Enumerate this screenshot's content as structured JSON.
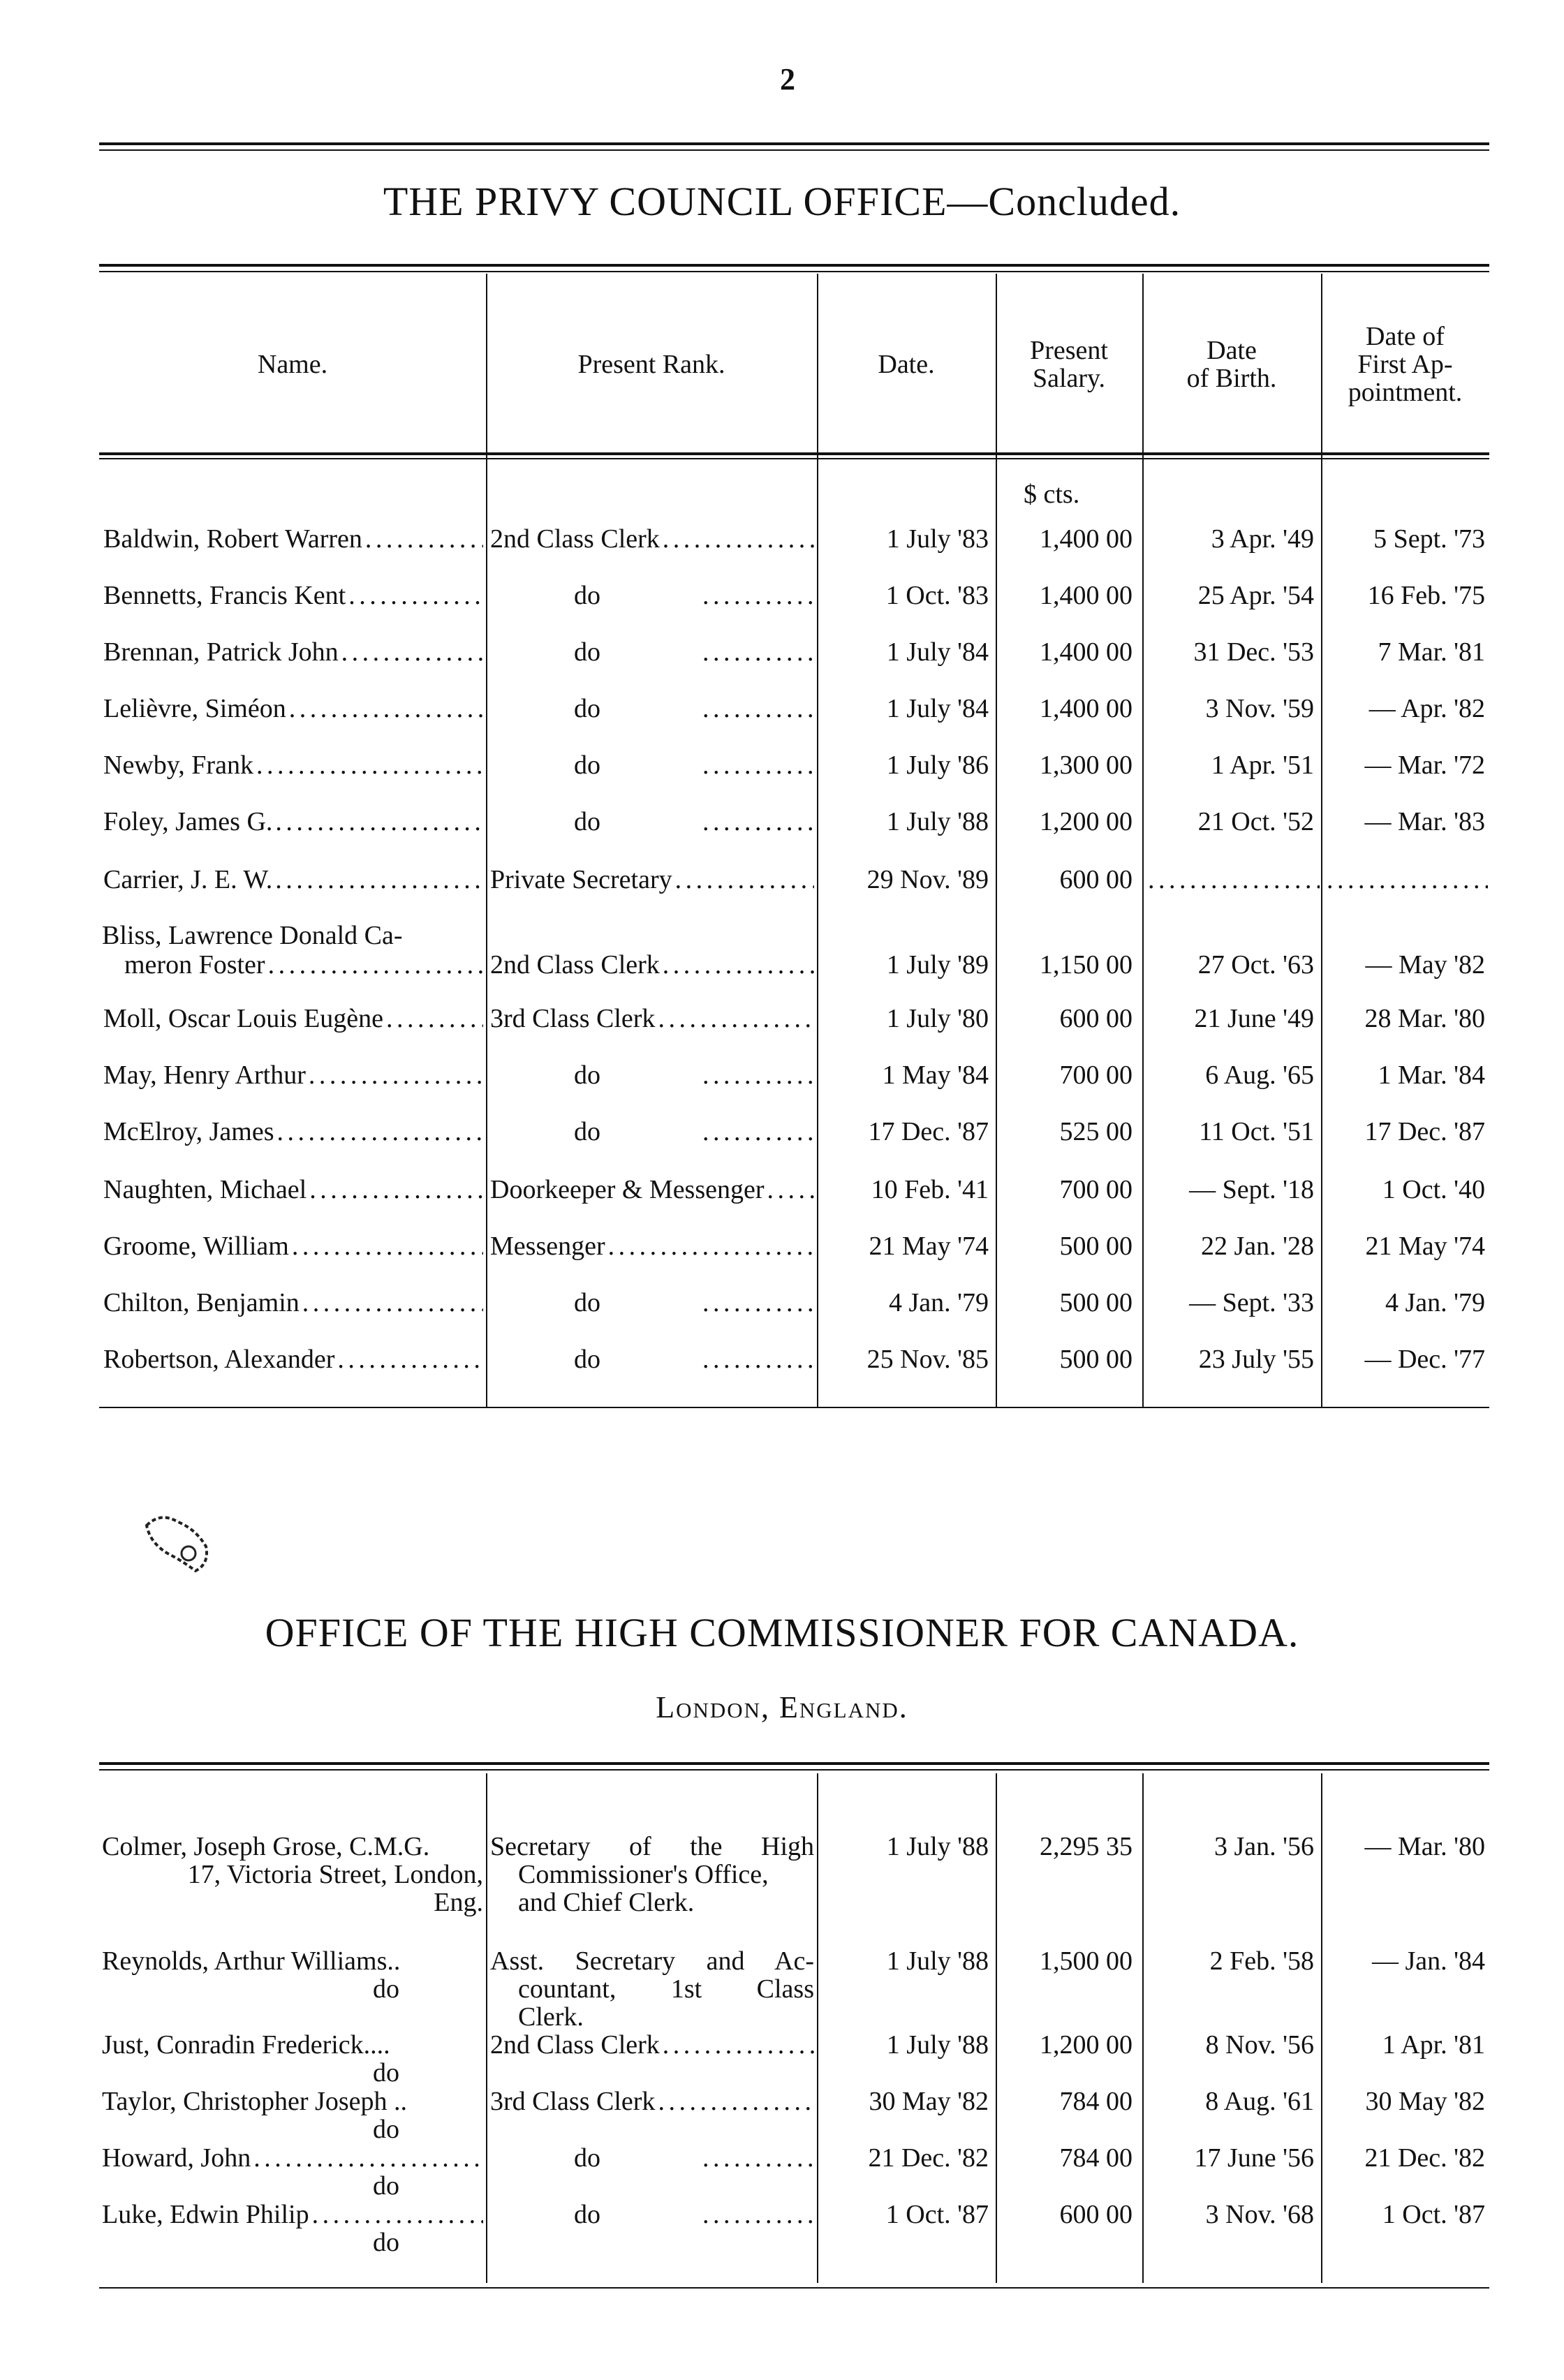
{
  "page_number": "2",
  "section1": {
    "title": "THE PRIVY COUNCIL OFFICE—Concluded.",
    "headers": [
      "Name.",
      "Present Rank.",
      "Date.",
      "Present Salary.",
      "Date of Birth.",
      "Date of First Ap- pointment."
    ],
    "currency_label": "$ cts.",
    "rows": [
      {
        "name": [
          "Baldwin, Robert Warren"
        ],
        "rank": "2nd Class Clerk",
        "date": "1 July '83",
        "salary": "1,400 00",
        "birth": "3 Apr. '49",
        "first": "5 Sept. '73"
      },
      {
        "name": [
          "Bennetts, Francis Kent"
        ],
        "rank": "do",
        "date": "1 Oct. '83",
        "salary": "1,400 00",
        "birth": "25 Apr. '54",
        "first": "16 Feb. '75"
      },
      {
        "name": [
          "Brennan, Patrick John"
        ],
        "rank": "do",
        "date": "1 July '84",
        "salary": "1,400 00",
        "birth": "31 Dec. '53",
        "first": "7 Mar. '81"
      },
      {
        "name": [
          "Lelièvre, Siméon"
        ],
        "rank": "do",
        "date": "1 July '84",
        "salary": "1,400 00",
        "birth": "3 Nov. '59",
        "first": "— Apr. '82"
      },
      {
        "name": [
          "Newby, Frank"
        ],
        "rank": "do",
        "date": "1 July '86",
        "salary": "1,300 00",
        "birth": "1 Apr. '51",
        "first": "— Mar. '72"
      },
      {
        "name": [
          "Foley, James G."
        ],
        "rank": "do",
        "date": "1 July '88",
        "salary": "1,200 00",
        "birth": "21 Oct. '52",
        "first": "— Mar. '83"
      },
      {
        "name": [
          "Carrier, J. E. W."
        ],
        "rank": "Private Secretary",
        "date": "29 Nov. '89",
        "salary": "600 00",
        "birth": "",
        "first": ""
      },
      {
        "name": [
          "Bliss, Lawrence Donald Ca-",
          "meron Foster"
        ],
        "rank": "2nd Class Clerk",
        "date": "1 July '89",
        "salary": "1,150 00",
        "birth": "27 Oct. '63",
        "first": "— May '82"
      },
      {
        "name": [
          "Moll, Oscar Louis Eugène"
        ],
        "rank": "3rd Class Clerk",
        "date": "1 July '80",
        "salary": "600 00",
        "birth": "21 June '49",
        "first": "28 Mar. '80"
      },
      {
        "name": [
          "May, Henry Arthur"
        ],
        "rank": "do",
        "date": "1 May '84",
        "salary": "700 00",
        "birth": "6 Aug. '65",
        "first": "1 Mar. '84"
      },
      {
        "name": [
          "McElroy, James"
        ],
        "rank": "do",
        "date": "17 Dec. '87",
        "salary": "525 00",
        "birth": "11 Oct. '51",
        "first": "17 Dec. '87"
      },
      {
        "name": [
          "Naughten, Michael"
        ],
        "rank": "Doorkeeper & Messenger",
        "date": "10 Feb. '41",
        "salary": "700 00",
        "birth": "— Sept. '18",
        "first": "1 Oct. '40"
      },
      {
        "name": [
          "Groome, William"
        ],
        "rank": "Messenger",
        "date": "21 May '74",
        "salary": "500 00",
        "birth": "22 Jan. '28",
        "first": "21 May '74"
      },
      {
        "name": [
          "Chilton, Benjamin"
        ],
        "rank": "do",
        "date": "4 Jan. '79",
        "salary": "500 00",
        "birth": "— Sept. '33",
        "first": "4 Jan. '79"
      },
      {
        "name": [
          "Robertson, Alexander"
        ],
        "rank": "do",
        "date": "25 Nov. '85",
        "salary": "500 00",
        "birth": "23 July '55",
        "first": "— Dec. '77"
      }
    ]
  },
  "section2": {
    "title": "OFFICE OF THE HIGH COMMISSIONER FOR CANADA.",
    "subtitle": "London, England.",
    "rows": [
      {
        "name": [
          "Colmer, Joseph Grose, C.M.G.",
          "17, Victoria Street, London,",
          "Eng."
        ],
        "rank": [
          "Secretary of the High",
          "Commissioner's Office,",
          "and Chief Clerk."
        ],
        "date": "1 July '88",
        "salary": "2,295 35",
        "birth": "3 Jan. '56",
        "first": "— Mar. '80"
      },
      {
        "name": [
          "Reynolds, Arthur Williams..",
          "do"
        ],
        "rank": [
          "Asst. Secretary and Ac-",
          "countant, 1st Class",
          "Clerk."
        ],
        "date": "1 July '88",
        "salary": "1,500 00",
        "birth": "2 Feb. '58",
        "first": "— Jan. '84"
      },
      {
        "name": [
          "Just, Conradin Frederick....",
          "do"
        ],
        "rank": [
          "2nd Class Clerk"
        ],
        "date": "1 July '88",
        "salary": "1,200 00",
        "birth": "8 Nov. '56",
        "first": "1 Apr. '81"
      },
      {
        "name": [
          "Taylor, Christopher Joseph ..",
          "do"
        ],
        "rank": [
          "3rd Class Clerk"
        ],
        "date": "30 May '82",
        "salary": "784 00",
        "birth": "8 Aug. '61",
        "first": "30 May '82"
      },
      {
        "name": [
          "Howard, John",
          "do"
        ],
        "rank": [
          "do"
        ],
        "date": "21 Dec. '82",
        "salary": "784 00",
        "birth": "17 June '56",
        "first": "21 Dec. '82"
      },
      {
        "name": [
          "Luke, Edwin Philip",
          "do"
        ],
        "rank": [
          "do"
        ],
        "date": "1 Oct. '87",
        "salary": "600 00",
        "birth": "3 Nov. '68",
        "first": "1 Oct. '87"
      }
    ]
  }
}
